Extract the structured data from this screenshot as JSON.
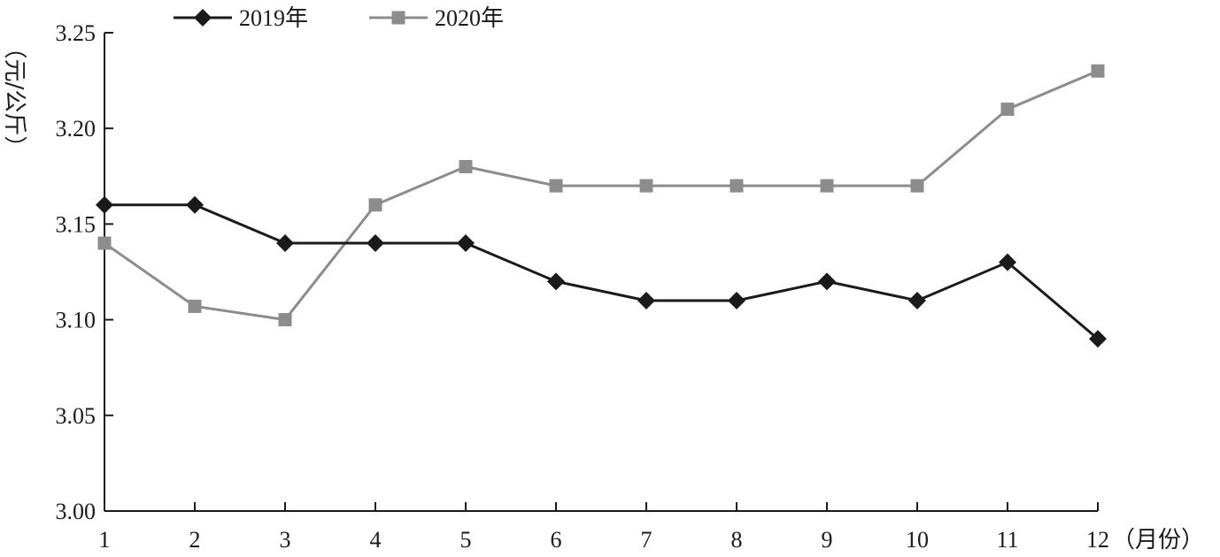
{
  "chart_data": {
    "type": "line",
    "categories": [
      "1",
      "2",
      "3",
      "4",
      "5",
      "6",
      "7",
      "8",
      "9",
      "10",
      "11",
      "12"
    ],
    "ylabel": "（元/公斤）",
    "xlabel": "（月份）",
    "ylim": [
      3.0,
      3.25
    ],
    "yticks": [
      "3.00",
      "3.05",
      "3.10",
      "3.15",
      "3.20",
      "3.25"
    ],
    "grid": false,
    "legend_position": "top-left",
    "series": [
      {
        "name": "2019年",
        "color": "#1a1a1a",
        "marker": "diamond",
        "values": [
          3.16,
          3.16,
          3.14,
          3.14,
          3.14,
          3.12,
          3.11,
          3.11,
          3.12,
          3.11,
          3.13,
          3.09
        ]
      },
      {
        "name": "2020年",
        "color": "#8c8c8c",
        "marker": "square",
        "values": [
          3.14,
          3.107,
          3.1,
          3.16,
          3.18,
          3.17,
          3.17,
          3.17,
          3.17,
          3.17,
          3.21,
          3.23
        ]
      }
    ]
  }
}
